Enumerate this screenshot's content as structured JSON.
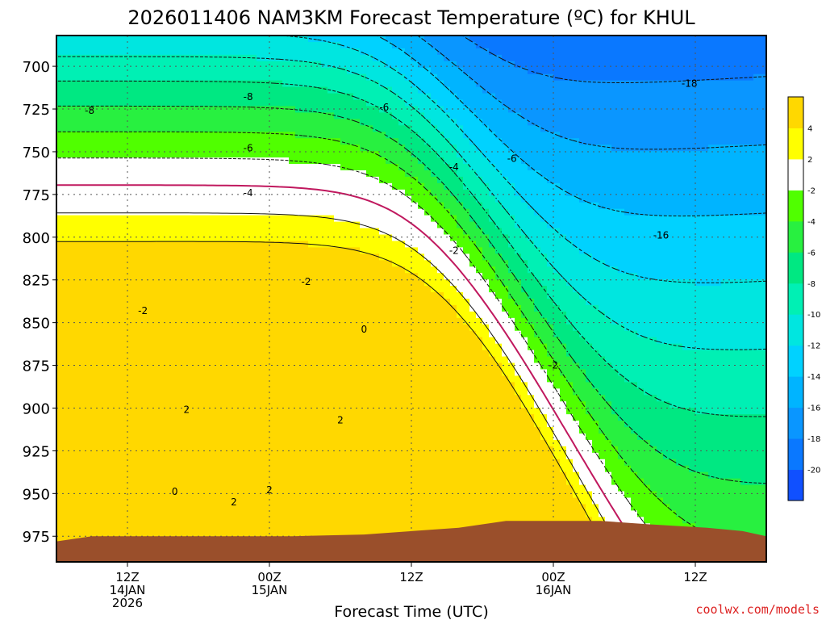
{
  "header": {
    "title": "2026011406 NAM3KM Forecast Temperature (ºC) for KHUL"
  },
  "footer": {
    "credit": "coolwx.com/models"
  },
  "colors": {
    "ground": "#9a4f2b",
    "grid": "#555555",
    "contour_below": "#111111",
    "contour_zero": "#c0185e"
  },
  "chart_data": {
    "type": "heatmap",
    "title": "2026011406 NAM3KM Forecast Temperature (ºC) for KHUL",
    "xlabel": "Forecast Time (UTC)",
    "ylabel": "",
    "ylim": [
      990,
      682
    ],
    "y_axis_inverted": true,
    "xlim_hours": [
      0,
      60
    ],
    "y_ticks": [
      700,
      725,
      750,
      775,
      800,
      825,
      850,
      875,
      900,
      925,
      950,
      975
    ],
    "x_ticks": [
      {
        "hour": 6,
        "label": "12Z",
        "sub": "14JAN",
        "sub2": "2026"
      },
      {
        "hour": 18,
        "label": "00Z",
        "sub": "15JAN",
        "sub2": ""
      },
      {
        "hour": 30,
        "label": "12Z",
        "sub": "",
        "sub2": ""
      },
      {
        "hour": 42,
        "label": "00Z",
        "sub": "16JAN",
        "sub2": ""
      },
      {
        "hour": 54,
        "label": "12Z",
        "sub": "",
        "sub2": ""
      }
    ],
    "grid": true,
    "colorbar": {
      "placement": "right",
      "levels": [
        {
          "lo": -22,
          "hi": -20,
          "color": "#1050ff"
        },
        {
          "lo": -20,
          "hi": -18,
          "color": "#0a78ff"
        },
        {
          "lo": -18,
          "hi": -16,
          "color": "#0a96ff"
        },
        {
          "lo": -16,
          "hi": -14,
          "color": "#00b4ff"
        },
        {
          "lo": -14,
          "hi": -12,
          "color": "#00d2ff"
        },
        {
          "lo": -12,
          "hi": -10,
          "color": "#00e6e0"
        },
        {
          "lo": -10,
          "hi": -8,
          "color": "#00f0b4"
        },
        {
          "lo": -8,
          "hi": -6,
          "color": "#00e882"
        },
        {
          "lo": -6,
          "hi": -4,
          "color": "#28f040"
        },
        {
          "lo": -4,
          "hi": -2,
          "color": "#50ff00"
        },
        {
          "lo": -2,
          "hi": 2,
          "color": "#ffffff"
        },
        {
          "lo": 2,
          "hi": 4,
          "color": "#ffff00"
        },
        {
          "lo": 4,
          "hi": 6,
          "color": "#ffd800"
        }
      ],
      "tick_labels": [
        "-20",
        "-18",
        "-16",
        "-14",
        "-12",
        "-10",
        "-8",
        "-6",
        "-4",
        "-2",
        "2",
        "4"
      ]
    },
    "contour_labels": [
      {
        "text": "-8",
        "hour": 2.8,
        "p": 726
      },
      {
        "text": "-8",
        "hour": 16.2,
        "p": 718
      },
      {
        "text": "-6",
        "hour": 27.7,
        "p": 724
      },
      {
        "text": "-6",
        "hour": 16.2,
        "p": 748
      },
      {
        "text": "-4",
        "hour": 16.2,
        "p": 774
      },
      {
        "text": "-4",
        "hour": 33.6,
        "p": 759
      },
      {
        "text": "-6",
        "hour": 38.5,
        "p": 754
      },
      {
        "text": "-18",
        "hour": 53.5,
        "p": 710
      },
      {
        "text": "-16",
        "hour": 51.1,
        "p": 799
      },
      {
        "text": "-2",
        "hour": 33.6,
        "p": 808
      },
      {
        "text": "-2",
        "hour": 21.1,
        "p": 826
      },
      {
        "text": "-2",
        "hour": 7.3,
        "p": 843
      },
      {
        "text": "-2",
        "hour": 42.0,
        "p": 875
      },
      {
        "text": "0",
        "hour": 26.0,
        "p": 854
      },
      {
        "text": "0",
        "hour": 10.0,
        "p": 949
      },
      {
        "text": "2",
        "hour": 11.0,
        "p": 901
      },
      {
        "text": "2",
        "hour": 24.0,
        "p": 907
      },
      {
        "text": "2",
        "hour": 18.0,
        "p": 948
      },
      {
        "text": "2",
        "hour": 15.0,
        "p": 955
      }
    ],
    "surface_pressure": [
      [
        0,
        978
      ],
      [
        3,
        975
      ],
      [
        8,
        975
      ],
      [
        14,
        975
      ],
      [
        20,
        975
      ],
      [
        26,
        974
      ],
      [
        30,
        972
      ],
      [
        34,
        970
      ],
      [
        38,
        966
      ],
      [
        42,
        966
      ],
      [
        46,
        966
      ],
      [
        50,
        968
      ],
      [
        55,
        970
      ],
      [
        58,
        972
      ],
      [
        60,
        975
      ]
    ]
  }
}
